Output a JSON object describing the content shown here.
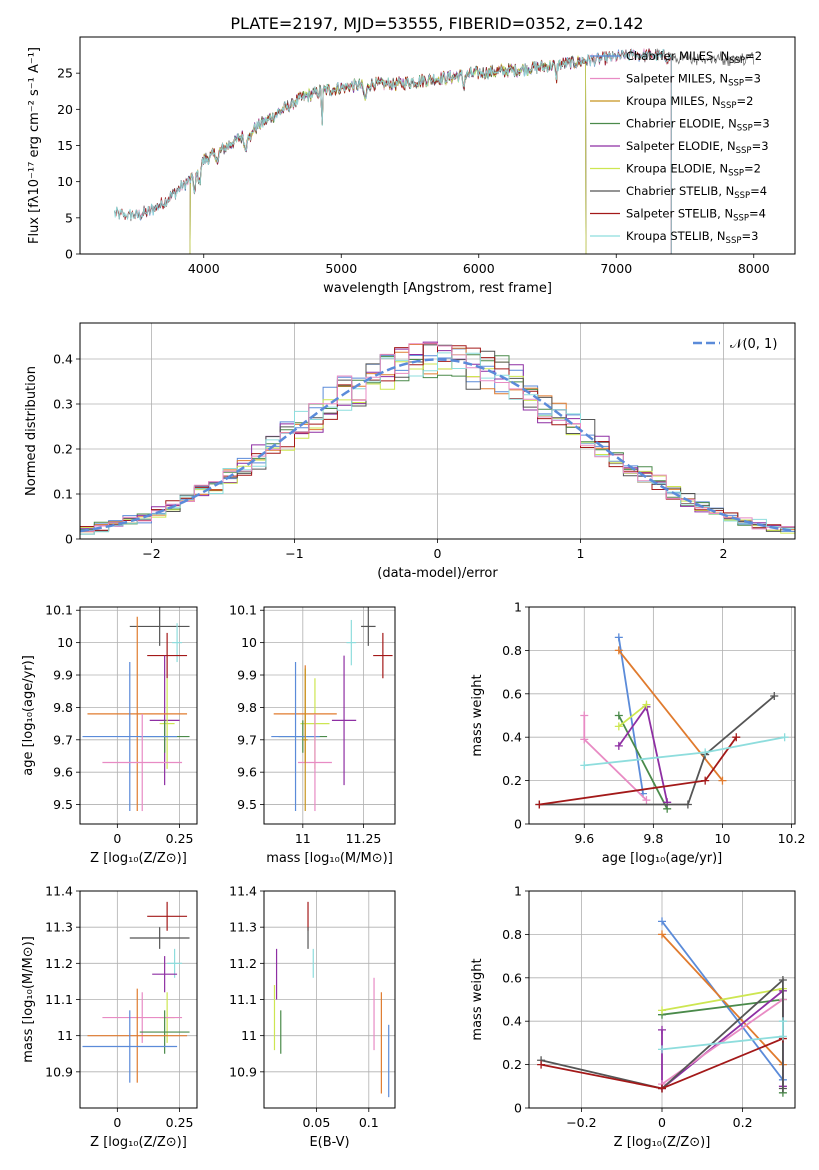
{
  "colors": {
    "c0": "#5b8bd9",
    "c1": "#e07b2e",
    "c2": "#c8951e",
    "c3": "#4a8a4a",
    "c4": "#8e2fa3",
    "c5": "#cde651",
    "c6": "#555555",
    "c7": "#a31919",
    "c8": "#8edddd",
    "c9": "#e88bc4",
    "c10": "#76b84e"
  },
  "chart_data": [
    {
      "id": "spectrum",
      "type": "line",
      "title": "PLATE=2197, MJD=53555, FIBERID=0352, z=0.142",
      "xlabel": "wavelength [Angstrom, rest frame]",
      "ylabel": "Flux [fλ10⁻¹⁷ erg cm⁻² s⁻¹ A⁻¹]",
      "xlim": [
        3100,
        8300
      ],
      "ylim": [
        0,
        30
      ],
      "xticks": [
        4000,
        5000,
        6000,
        7000,
        8000
      ],
      "yticks": [
        0,
        5,
        10,
        15,
        20,
        25
      ],
      "legend_position": "top-right",
      "continuum": {
        "x": [
          3350,
          3500,
          3600,
          3700,
          3850,
          3950,
          4000,
          4100,
          4300,
          4500,
          4700,
          4850,
          5000,
          5200,
          5400,
          5600,
          5800,
          6000,
          6300,
          6500,
          6700,
          6900,
          7100,
          7300,
          7450
        ],
        "y": [
          5.5,
          5.4,
          5.8,
          7.0,
          9.5,
          11.0,
          13.0,
          14.0,
          16.5,
          19.0,
          21.5,
          22.5,
          23.0,
          23.5,
          23.5,
          24.0,
          24.5,
          25.0,
          25.5,
          26.0,
          26.5,
          27.0,
          27.5,
          27.5,
          27.0
        ]
      },
      "series": [
        {
          "name": "Chabrier MILES, N_SSP=2",
          "label_main": "Chabrier MILES, N",
          "label_sub": "SSP",
          "label_end": "=2",
          "color": "c0",
          "xmin": 3500,
          "xmax": 7400,
          "noise": 0.7
        },
        {
          "name": "Salpeter MILES, N_SSP=3",
          "label_main": "Salpeter MILES, N",
          "label_sub": "SSP",
          "label_end": "=3",
          "color": "c9",
          "xmin": 3500,
          "xmax": 7400,
          "noise": 0.7
        },
        {
          "name": "Kroupa MILES, N_SSP=2",
          "label_main": "Kroupa MILES, N",
          "label_sub": "SSP",
          "label_end": "=2",
          "color": "c2",
          "xmin": 3900,
          "xmax": 6780,
          "noise": 0.7
        },
        {
          "name": "Chabrier ELODIE, N_SSP=3",
          "label_main": "Chabrier ELODIE, N",
          "label_sub": "SSP",
          "label_end": "=3",
          "color": "c3",
          "xmin": 3900,
          "xmax": 6780,
          "noise": 0.7
        },
        {
          "name": "Salpeter ELODIE, N_SSP=3",
          "label_main": "Salpeter ELODIE, N",
          "label_sub": "SSP",
          "label_end": "=3",
          "color": "c4",
          "xmin": 3900,
          "xmax": 6780,
          "noise": 0.7
        },
        {
          "name": "Kroupa ELODIE, N_SSP=2",
          "label_main": "Kroupa ELODIE, N",
          "label_sub": "SSP",
          "label_end": "=2",
          "color": "c5",
          "xmin": 3900,
          "xmax": 6780,
          "noise": 0.7
        },
        {
          "name": "Chabrier STELIB, N_SSP=4",
          "label_main": "Chabrier STELIB, N",
          "label_sub": "SSP",
          "label_end": "=4",
          "color": "c6",
          "xmin": 3350,
          "xmax": 8000,
          "noise": 0.8
        },
        {
          "name": "Salpeter STELIB, N_SSP=4",
          "label_main": "Salpeter STELIB, N",
          "label_sub": "SSP",
          "label_end": "=4",
          "color": "c7",
          "xmin": 3350,
          "xmax": 7400,
          "noise": 0.7
        },
        {
          "name": "Kroupa STELIB, N_SSP=3",
          "label_main": "Kroupa STELIB, N",
          "label_sub": "SSP",
          "label_end": "=3",
          "color": "c8",
          "xmin": 3350,
          "xmax": 7400,
          "noise": 0.7
        }
      ]
    },
    {
      "id": "residuals",
      "type": "step",
      "xlabel": "(data-model)/error",
      "ylabel": "Normed distribution",
      "xlim": [
        -2.5,
        2.5
      ],
      "ylim": [
        0,
        0.48
      ],
      "xticks": [
        -2,
        -1,
        0,
        1,
        2
      ],
      "yticks": [
        0.0,
        0.1,
        0.2,
        0.3,
        0.4
      ],
      "grid": true,
      "legend_position": "top-right",
      "legend": [
        {
          "label": "𝒩(0, 1)",
          "style": "dashed",
          "color": "c0"
        }
      ],
      "bin_width": 0.1,
      "colors": [
        "c0",
        "c1",
        "c3",
        "c4",
        "c5",
        "c6",
        "c7",
        "c8",
        "c9"
      ]
    },
    {
      "id": "z-age",
      "type": "errorbar",
      "xlabel": "Z [log₁₀(Z/Z⊙)]",
      "ylabel": "age  [log₁₀(age/yr)]",
      "xlim": [
        -0.15,
        0.32
      ],
      "ylim": [
        9.44,
        10.11
      ],
      "xticks": [
        0.0,
        0.25
      ],
      "yticks": [
        9.5,
        9.6,
        9.7,
        9.8,
        9.9,
        10.0,
        10.1
      ],
      "grid": true,
      "points": [
        {
          "color": "c6",
          "x": 0.17,
          "xerr": 0.12,
          "y": 10.05,
          "yerr": 0.06
        },
        {
          "color": "c8",
          "x": 0.24,
          "xerr": 0.02,
          "y": 10.0,
          "yerr": 0.06
        },
        {
          "color": "c7",
          "x": 0.2,
          "xerr": 0.08,
          "y": 9.96,
          "yerr": 0.07
        },
        {
          "color": "c4",
          "x": 0.19,
          "xerr": 0.06,
          "y": 9.76,
          "yerr": 0.2
        },
        {
          "color": "c5",
          "x": 0.2,
          "xerr": 0.03,
          "y": 9.75,
          "yerr": 0.14
        },
        {
          "color": "c1",
          "x": 0.08,
          "xerr": 0.2,
          "y": 9.78,
          "yerr": 0.3
        },
        {
          "color": "c3",
          "x": 0.19,
          "xerr": 0.1,
          "y": 9.71,
          "yerr": 0.05
        },
        {
          "color": "c0",
          "x": 0.05,
          "xerr": 0.19,
          "y": 9.71,
          "yerr": 0.23
        },
        {
          "color": "c9",
          "x": 0.1,
          "xerr": 0.16,
          "y": 9.63,
          "yerr": 0.15
        }
      ]
    },
    {
      "id": "mass-age",
      "type": "errorbar",
      "xlabel": "mass [log₁₀(M/M⊙)]",
      "ylabel": "",
      "xlim": [
        10.84,
        11.38
      ],
      "ylim": [
        9.44,
        10.11
      ],
      "xticks": [
        11.0,
        11.25
      ],
      "yticks": [
        9.5,
        9.6,
        9.7,
        9.8,
        9.9,
        10.0,
        10.1
      ],
      "grid": true,
      "points": [
        {
          "color": "c6",
          "x": 11.27,
          "xerr": 0.03,
          "y": 10.05,
          "yerr": 0.06
        },
        {
          "color": "c8",
          "x": 11.2,
          "xerr": 0.02,
          "y": 10.0,
          "yerr": 0.07
        },
        {
          "color": "c7",
          "x": 11.33,
          "xerr": 0.04,
          "y": 9.96,
          "yerr": 0.07
        },
        {
          "color": "c4",
          "x": 11.17,
          "xerr": 0.05,
          "y": 9.76,
          "yerr": 0.2
        },
        {
          "color": "c5",
          "x": 11.05,
          "xerr": 0.06,
          "y": 9.75,
          "yerr": 0.14
        },
        {
          "color": "c1",
          "x": 11.01,
          "xerr": 0.13,
          "y": 9.78,
          "yerr": 0.15
        },
        {
          "color": "c3",
          "x": 11.0,
          "xerr": 0.1,
          "y": 9.71,
          "yerr": 0.05
        },
        {
          "color": "c0",
          "x": 10.97,
          "xerr": 0.1,
          "y": 9.71,
          "yerr": 0.23
        },
        {
          "color": "c9",
          "x": 11.05,
          "xerr": 0.07,
          "y": 9.63,
          "yerr": 0.15
        },
        {
          "color": "c2",
          "x": 11.01,
          "xerr": 0.01,
          "y": 9.7,
          "yerr": 0.22
        }
      ]
    },
    {
      "id": "age-weight",
      "type": "line",
      "xlabel": "age  [log₁₀(age/yr)]",
      "ylabel": "mass weight",
      "xlim": [
        9.44,
        10.21
      ],
      "ylim": [
        0,
        1.0
      ],
      "xticks": [
        9.6,
        9.8,
        10.0,
        10.2
      ],
      "yticks": [
        0.0,
        0.2,
        0.4,
        0.6,
        0.8,
        1.0
      ],
      "grid": true,
      "series": [
        {
          "color": "c0",
          "x": [
            9.7,
            9.77
          ],
          "y": [
            0.86,
            0.14
          ]
        },
        {
          "color": "c1",
          "x": [
            9.7,
            10.0
          ],
          "y": [
            0.8,
            0.2
          ]
        },
        {
          "color": "c3",
          "x": [
            9.7,
            9.84
          ],
          "y": [
            0.5,
            0.07
          ]
        },
        {
          "color": "c4",
          "x": [
            9.7,
            9.78,
            9.84
          ],
          "y": [
            0.36,
            0.54,
            0.1
          ]
        },
        {
          "color": "c5",
          "x": [
            9.7,
            9.78
          ],
          "y": [
            0.45,
            0.55
          ]
        },
        {
          "color": "c9",
          "x": [
            9.6,
            9.6,
            9.78
          ],
          "y": [
            0.5,
            0.39,
            0.11
          ]
        },
        {
          "color": "c6",
          "x": [
            9.47,
            9.9,
            9.95,
            10.15
          ],
          "y": [
            0.09,
            0.09,
            0.32,
            0.59
          ]
        },
        {
          "color": "c7",
          "x": [
            9.47,
            9.95,
            10.04
          ],
          "y": [
            0.09,
            0.2,
            0.4
          ]
        },
        {
          "color": "c8",
          "x": [
            9.6,
            9.95,
            10.18
          ],
          "y": [
            0.27,
            0.33,
            0.4
          ]
        }
      ]
    },
    {
      "id": "z-mass",
      "type": "errorbar",
      "xlabel": "Z [log₁₀(Z/Z⊙)]",
      "ylabel": "mass [log₁₀(M/M⊙)]",
      "xlim": [
        -0.15,
        0.32
      ],
      "ylim": [
        10.8,
        11.4
      ],
      "xticks": [
        0.0,
        0.25
      ],
      "yticks": [
        10.9,
        11.0,
        11.1,
        11.2,
        11.3,
        11.4
      ],
      "grid": true,
      "points": [
        {
          "color": "c7",
          "x": 0.2,
          "xerr": 0.08,
          "y": 11.33,
          "yerr": 0.04
        },
        {
          "color": "c6",
          "x": 0.17,
          "xerr": 0.12,
          "y": 11.27,
          "yerr": 0.03
        },
        {
          "color": "c8",
          "x": 0.23,
          "xerr": 0.03,
          "y": 11.2,
          "yerr": 0.04
        },
        {
          "color": "c4",
          "x": 0.19,
          "xerr": 0.05,
          "y": 11.17,
          "yerr": 0.05
        },
        {
          "color": "c5",
          "x": 0.2,
          "xerr": 0.03,
          "y": 11.05,
          "yerr": 0.07
        },
        {
          "color": "c9",
          "x": 0.1,
          "xerr": 0.16,
          "y": 11.05,
          "yerr": 0.07
        },
        {
          "color": "c3",
          "x": 0.19,
          "xerr": 0.1,
          "y": 11.01,
          "yerr": 0.06
        },
        {
          "color": "c1",
          "x": 0.08,
          "xerr": 0.2,
          "y": 11.0,
          "yerr": 0.13
        },
        {
          "color": "c0",
          "x": 0.05,
          "xerr": 0.19,
          "y": 10.97,
          "yerr": 0.1
        }
      ]
    },
    {
      "id": "ebv-mass",
      "type": "errorbar",
      "xlabel": "E(B-V)",
      "ylabel": "",
      "xlim": [
        0.0,
        0.125
      ],
      "ylim": [
        10.8,
        11.4
      ],
      "xticks": [
        0.05,
        0.1
      ],
      "yticks": [
        10.9,
        11.0,
        11.1,
        11.2,
        11.3,
        11.4
      ],
      "grid": true,
      "points": [
        {
          "color": "c7",
          "x": 0.042,
          "y": 11.33,
          "yerr": 0.04
        },
        {
          "color": "c6",
          "x": 0.042,
          "y": 11.27,
          "yerr": 0.03
        },
        {
          "color": "c8",
          "x": 0.047,
          "y": 11.2,
          "yerr": 0.04
        },
        {
          "color": "c4",
          "x": 0.012,
          "y": 11.17,
          "yerr": 0.07
        },
        {
          "color": "c5",
          "x": 0.01,
          "y": 11.05,
          "yerr": 0.09
        },
        {
          "color": "c9",
          "x": 0.105,
          "y": 11.06,
          "yerr": 0.1
        },
        {
          "color": "c3",
          "x": 0.016,
          "y": 11.01,
          "yerr": 0.06
        },
        {
          "color": "c1",
          "x": 0.112,
          "y": 10.98,
          "yerr": 0.14
        },
        {
          "color": "c0",
          "x": 0.119,
          "y": 10.93,
          "yerr": 0.1
        }
      ]
    },
    {
      "id": "z-weight",
      "type": "line",
      "xlabel": "Z [log₁₀(Z/Z⊙)]",
      "ylabel": "mass weight",
      "xlim": [
        -0.33,
        0.33
      ],
      "ylim": [
        0,
        1.0
      ],
      "xticks": [
        -0.2,
        0.0,
        0.2
      ],
      "yticks": [
        0.0,
        0.2,
        0.4,
        0.6,
        0.8,
        1.0
      ],
      "grid": true,
      "series": [
        {
          "color": "c0",
          "x": [
            0.0,
            0.3
          ],
          "y": [
            0.86,
            0.13
          ]
        },
        {
          "color": "c1",
          "x": [
            0.0,
            0.3
          ],
          "y": [
            0.8,
            0.2
          ]
        },
        {
          "color": "c3",
          "x": [
            0.0,
            0.3,
            0.3
          ],
          "y": [
            0.43,
            0.5,
            0.07
          ]
        },
        {
          "color": "c4",
          "x": [
            0.0,
            0.0,
            0.3,
            0.3
          ],
          "y": [
            0.36,
            0.09,
            0.54,
            0.1
          ]
        },
        {
          "color": "c5",
          "x": [
            0.0,
            0.3
          ],
          "y": [
            0.45,
            0.55
          ]
        },
        {
          "color": "c9",
          "x": [
            0.0,
            0.3
          ],
          "y": [
            0.11,
            0.5
          ]
        },
        {
          "color": "c6",
          "x": [
            -0.3,
            0.0,
            0.3,
            0.3
          ],
          "y": [
            0.22,
            0.09,
            0.59,
            0.09
          ]
        },
        {
          "color": "c7",
          "x": [
            -0.3,
            0.0,
            0.3
          ],
          "y": [
            0.2,
            0.09,
            0.32
          ]
        },
        {
          "color": "c8",
          "x": [
            0.0,
            0.3,
            0.3
          ],
          "y": [
            0.27,
            0.33,
            0.4
          ]
        }
      ]
    }
  ]
}
